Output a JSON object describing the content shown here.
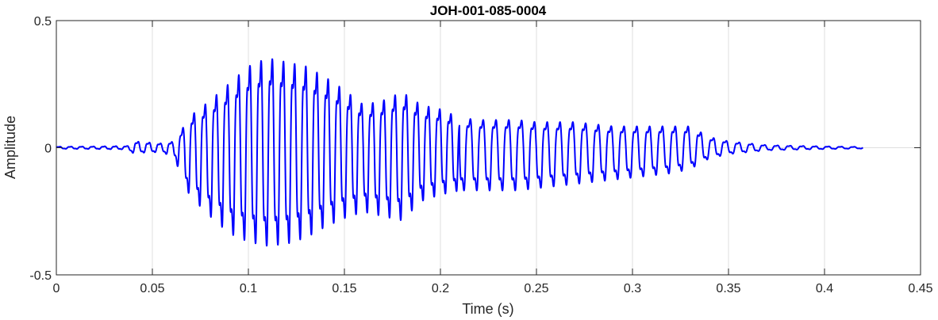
{
  "chart_data": {
    "type": "line",
    "title": "JOH-001-085-0004",
    "xlabel": "Time (s)",
    "ylabel": "Amplitude",
    "xlim": [
      0,
      0.45
    ],
    "ylim": [
      -0.5,
      0.5
    ],
    "xticks": [
      0,
      0.05,
      0.1,
      0.15,
      0.2,
      0.25,
      0.3,
      0.35,
      0.4,
      0.45
    ],
    "xtick_labels": [
      "0",
      "0.05",
      "0.1",
      "0.15",
      "0.2",
      "0.25",
      "0.3",
      "0.35",
      "0.4",
      "0.45"
    ],
    "yticks": [
      -0.5,
      0,
      0.5
    ],
    "ytick_labels": [
      "-0.5",
      "0",
      "0.5"
    ],
    "grid": true,
    "series": [
      {
        "color": "#0000ff",
        "x": [
          0,
          0.02,
          0.037,
          0.04,
          0.055,
          0.062,
          0.065,
          0.07,
          0.08,
          0.09,
          0.1,
          0.11,
          0.12,
          0.13,
          0.14,
          0.15,
          0.16,
          0.17,
          0.18,
          0.19,
          0.2,
          0.21,
          0.22,
          0.23,
          0.24,
          0.25,
          0.26,
          0.27,
          0.28,
          0.29,
          0.3,
          0.31,
          0.32,
          0.33,
          0.34,
          0.35,
          0.37,
          0.39,
          0.41,
          0.42
        ],
        "upper": [
          0.005,
          0.006,
          0.008,
          0.03,
          0.02,
          0.03,
          0.08,
          0.15,
          0.22,
          0.3,
          0.38,
          0.42,
          0.4,
          0.38,
          0.33,
          0.27,
          0.2,
          0.22,
          0.26,
          0.2,
          0.18,
          0.14,
          0.13,
          0.13,
          0.13,
          0.12,
          0.12,
          0.12,
          0.11,
          0.1,
          0.1,
          0.1,
          0.1,
          0.1,
          0.05,
          0.03,
          0.012,
          0.008,
          0.005,
          0.004
        ],
        "lower": [
          -0.005,
          -0.006,
          -0.008,
          -0.025,
          -0.02,
          -0.05,
          -0.15,
          -0.23,
          -0.32,
          -0.4,
          -0.44,
          -0.46,
          -0.45,
          -0.42,
          -0.37,
          -0.33,
          -0.3,
          -0.32,
          -0.34,
          -0.25,
          -0.22,
          -0.2,
          -0.2,
          -0.2,
          -0.2,
          -0.19,
          -0.18,
          -0.17,
          -0.16,
          -0.15,
          -0.14,
          -0.13,
          -0.12,
          -0.1,
          -0.05,
          -0.03,
          -0.012,
          -0.008,
          -0.005,
          -0.004
        ]
      }
    ]
  }
}
